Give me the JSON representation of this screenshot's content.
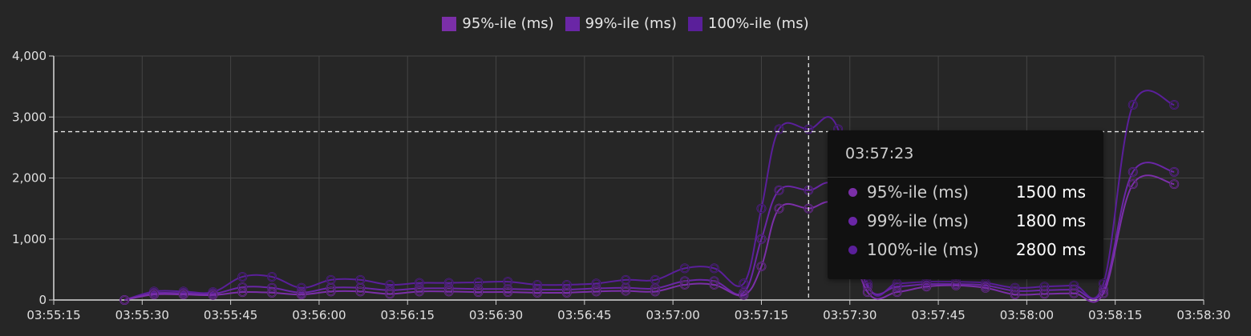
{
  "chart_data": {
    "type": "line",
    "x": [
      "03:55:27",
      "03:55:32",
      "03:55:37",
      "03:55:42",
      "03:55:47",
      "03:55:52",
      "03:55:57",
      "03:56:02",
      "03:56:07",
      "03:56:12",
      "03:56:17",
      "03:56:22",
      "03:56:27",
      "03:56:32",
      "03:56:37",
      "03:56:42",
      "03:56:47",
      "03:56:52",
      "03:56:57",
      "03:57:02",
      "03:57:07",
      "03:57:12",
      "03:57:15",
      "03:57:18",
      "03:57:23",
      "03:57:28",
      "03:57:33",
      "03:57:38",
      "03:57:43",
      "03:57:48",
      "03:57:53",
      "03:57:58",
      "03:58:03",
      "03:58:08",
      "03:58:13",
      "03:58:18",
      "03:58:25"
    ],
    "series": [
      {
        "name": "95%-ile (ms)",
        "color": "#7b2fa8",
        "values": [
          0,
          90,
          90,
          80,
          130,
          120,
          90,
          140,
          140,
          100,
          140,
          140,
          130,
          130,
          120,
          120,
          140,
          150,
          140,
          250,
          250,
          80,
          550,
          1500,
          1500,
          1500,
          130,
          130,
          220,
          240,
          200,
          90,
          100,
          110,
          110,
          1900,
          1900
        ]
      },
      {
        "name": "99%-ile (ms)",
        "color": "#6a26a6",
        "values": [
          0,
          110,
          110,
          100,
          210,
          200,
          120,
          200,
          200,
          160,
          190,
          190,
          180,
          180,
          170,
          170,
          190,
          200,
          190,
          310,
          310,
          120,
          1000,
          1800,
          1800,
          1800,
          220,
          220,
          260,
          260,
          240,
          150,
          160,
          170,
          170,
          2100,
          2100
        ]
      },
      {
        "name": "100%-ile (ms)",
        "color": "#5a1f9a",
        "values": [
          0,
          140,
          140,
          130,
          380,
          380,
          200,
          330,
          330,
          250,
          280,
          280,
          290,
          300,
          250,
          250,
          270,
          330,
          330,
          520,
          520,
          270,
          1500,
          2800,
          2800,
          2800,
          270,
          270,
          300,
          300,
          280,
          200,
          220,
          240,
          270,
          3200,
          3200
        ]
      }
    ],
    "x_ticks": [
      "03:55:15",
      "03:55:30",
      "03:55:45",
      "03:56:00",
      "03:56:15",
      "03:56:30",
      "03:56:45",
      "03:57:00",
      "03:57:15",
      "03:57:30",
      "03:57:45",
      "03:58:00",
      "03:58:15",
      "03:58:30"
    ],
    "y_ticks": [
      "0",
      "1,000",
      "2,000",
      "3,000",
      "4,000"
    ],
    "xlim": [
      "03:55:15",
      "03:58:30"
    ],
    "ylim": [
      0,
      4000
    ],
    "grid": true,
    "legend": "top-center",
    "crosshair": {
      "x": "03:57:23",
      "y": 2760
    },
    "tooltip": {
      "title": "03:57:23",
      "rows": [
        {
          "name": "95%-ile (ms)",
          "value": "1500 ms",
          "color": "#7b2fa8"
        },
        {
          "name": "99%-ile (ms)",
          "value": "1800 ms",
          "color": "#6a26a6"
        },
        {
          "name": "100%-ile (ms)",
          "value": "2800 ms",
          "color": "#5a1f9a"
        }
      ]
    }
  }
}
